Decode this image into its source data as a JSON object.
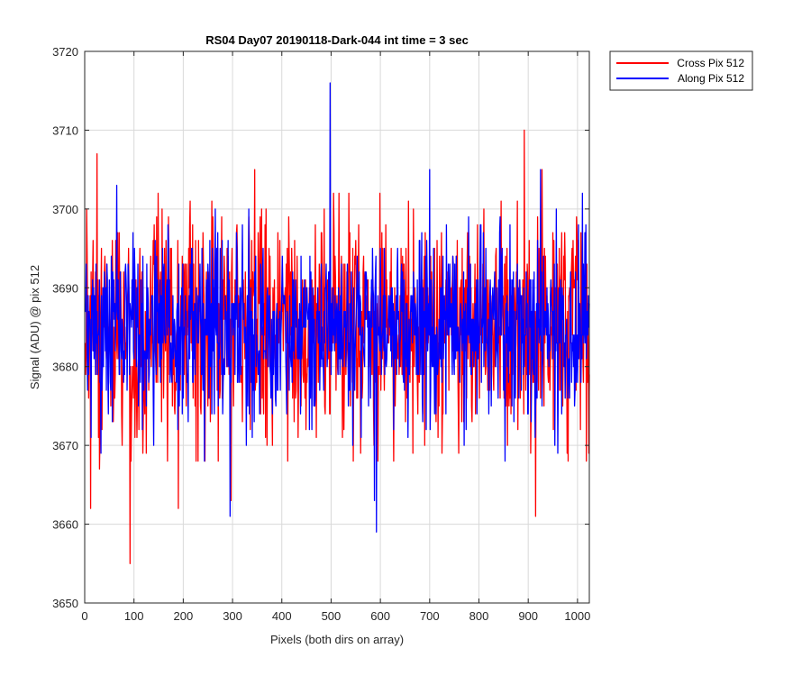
{
  "chart_data": {
    "type": "line",
    "title": "RS04 Day07 20190118-Dark-044 int time = 3 sec",
    "xlabel": "Pixels (both dirs on array)",
    "ylabel": "Signal (ADU) @ pix 512",
    "xlim": [
      0,
      1024
    ],
    "ylim": [
      3650,
      3720
    ],
    "x_ticks": [
      "0",
      "100",
      "200",
      "300",
      "400",
      "500",
      "600",
      "700",
      "800",
      "900",
      "1000"
    ],
    "y_ticks": [
      "3650",
      "3660",
      "3670",
      "3680",
      "3690",
      "3700",
      "3710",
      "3720"
    ],
    "grid": true,
    "legend_position": "outside-top-right",
    "n_points": 1024,
    "series": [
      {
        "name": "Cross Pix 512",
        "color": "#ff0000",
        "mean": 3685,
        "std": 7,
        "spikes": [
          {
            "x": 12,
            "y": 3662
          },
          {
            "x": 25,
            "y": 3707
          },
          {
            "x": 30,
            "y": 3667
          },
          {
            "x": 92,
            "y": 3655
          },
          {
            "x": 190,
            "y": 3662
          },
          {
            "x": 297,
            "y": 3663
          },
          {
            "x": 345,
            "y": 3705
          },
          {
            "x": 892,
            "y": 3710
          },
          {
            "x": 915,
            "y": 3661
          },
          {
            "x": 928,
            "y": 3705
          },
          {
            "x": 1018,
            "y": 3668
          }
        ]
      },
      {
        "name": "Along Pix 512",
        "color": "#0000ff",
        "mean": 3685,
        "std": 6,
        "spikes": [
          {
            "x": 65,
            "y": 3703
          },
          {
            "x": 295,
            "y": 3661
          },
          {
            "x": 498,
            "y": 3716
          },
          {
            "x": 588,
            "y": 3663
          },
          {
            "x": 592,
            "y": 3659
          },
          {
            "x": 700,
            "y": 3705
          },
          {
            "x": 925,
            "y": 3705
          },
          {
            "x": 1010,
            "y": 3702
          }
        ]
      }
    ]
  }
}
